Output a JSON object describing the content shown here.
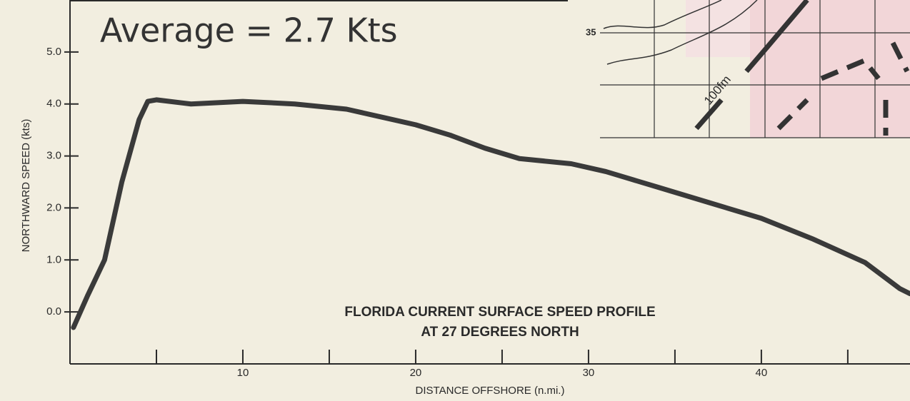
{
  "chart_data": {
    "type": "line",
    "title": "FLORIDA CURRENT SURFACE SPEED PROFILE",
    "subtitle": "AT 27 DEGREES NORTH",
    "x_label": "DISTANCE OFFSHORE (n.mi.)",
    "y_label": "NORTHWARD SPEED (kts)",
    "annotation": "Average = 2.7 Kts",
    "inset_labels": [
      "35",
      "100fm"
    ],
    "xlim": [
      0,
      48.6
    ],
    "ylim": [
      -1,
      6
    ],
    "xticks": [
      10,
      20,
      30,
      40
    ],
    "xminorticks": [
      5,
      15,
      25,
      35,
      45
    ],
    "yticks": [
      {
        "value": 0,
        "label": "0.0"
      },
      {
        "value": 1,
        "label": "1.0"
      },
      {
        "value": 2,
        "label": "2.0"
      },
      {
        "value": 3,
        "label": "3.0"
      },
      {
        "value": 4,
        "label": "4.0"
      },
      {
        "value": 5,
        "label": "5.0"
      }
    ],
    "series": [
      {
        "name": "Surface speed",
        "color": "#3a3a3a",
        "x": [
          0.2,
          1,
          2,
          3,
          4,
          4.5,
          5,
          7,
          10,
          13,
          16,
          18,
          20,
          22,
          24,
          26,
          29,
          31,
          34,
          37,
          40,
          43,
          46,
          48,
          48.6
        ],
        "values": [
          -0.3,
          0.3,
          1.0,
          2.5,
          3.7,
          4.05,
          4.08,
          4.0,
          4.05,
          4.0,
          3.9,
          3.75,
          3.6,
          3.4,
          3.15,
          2.95,
          2.85,
          2.7,
          2.4,
          2.1,
          1.8,
          1.4,
          0.95,
          0.45,
          0.35
        ]
      }
    ]
  }
}
